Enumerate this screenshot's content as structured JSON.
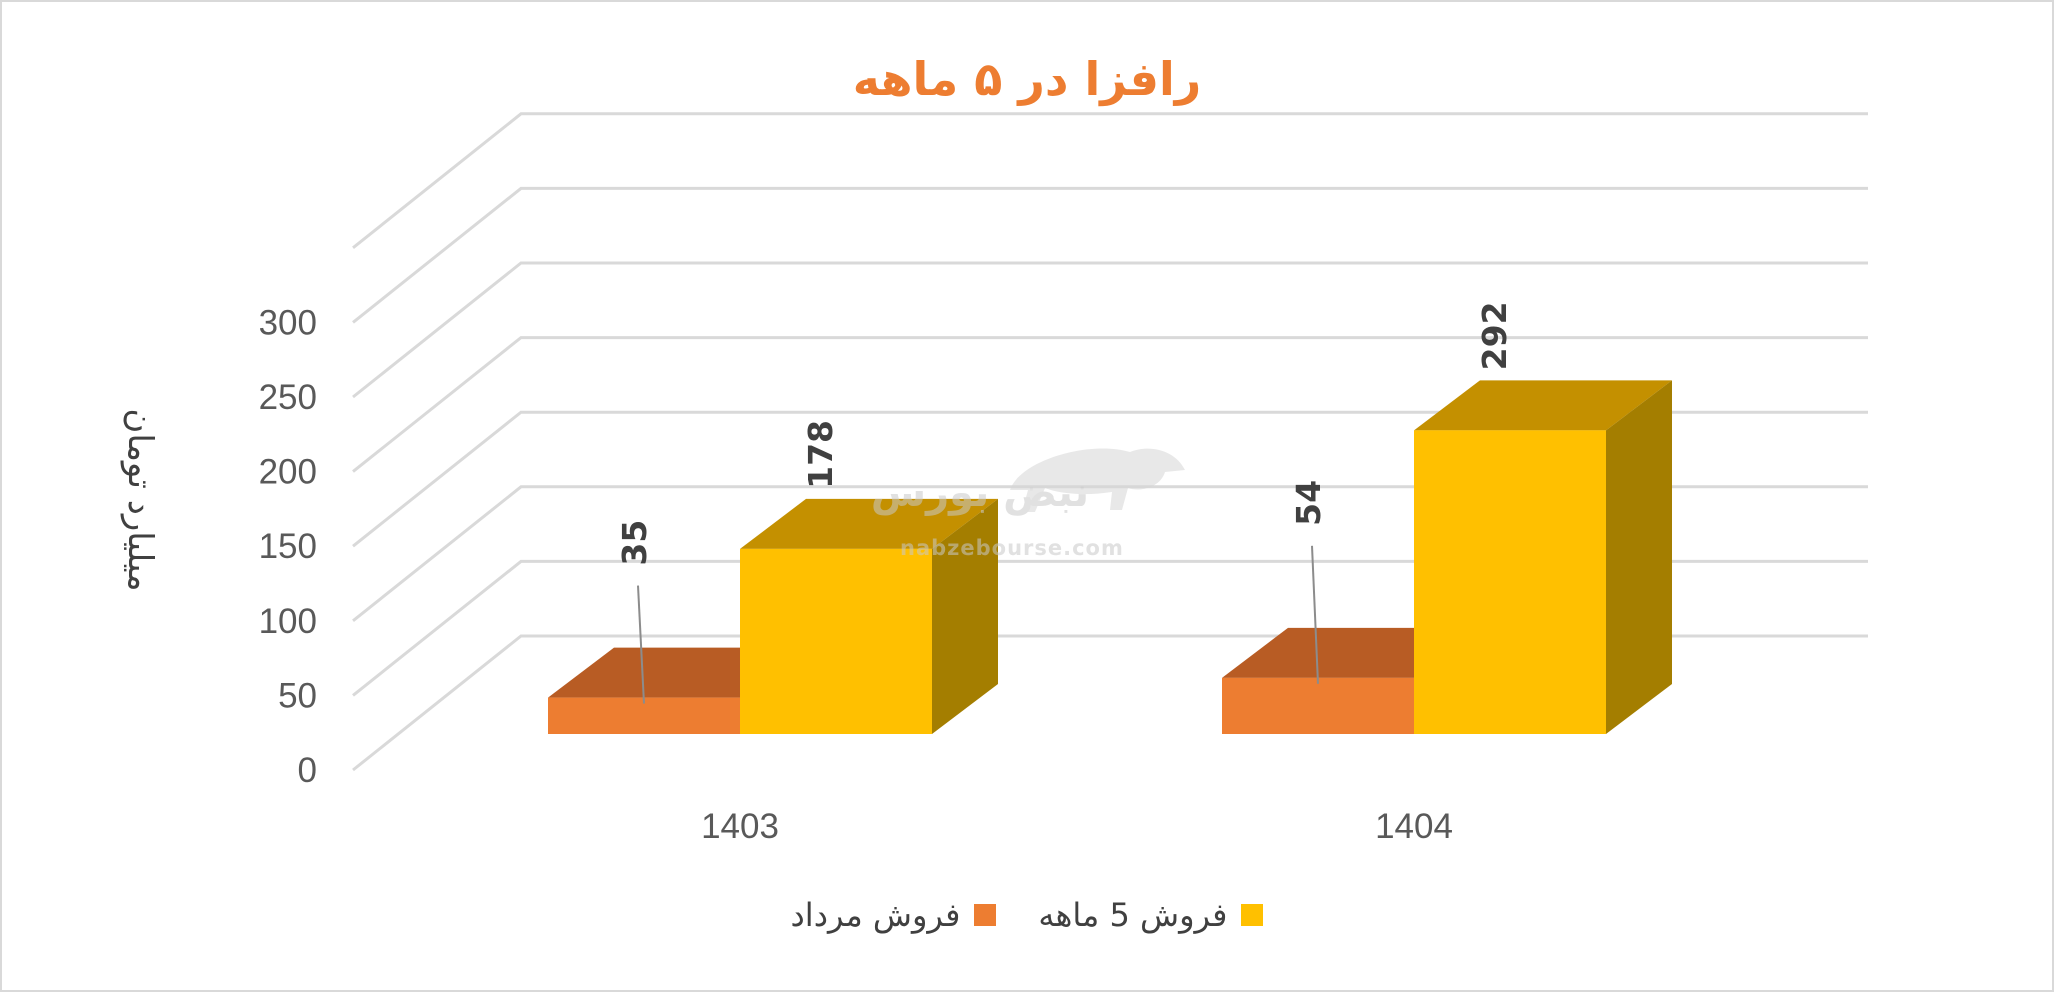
{
  "chart_data": {
    "type": "bar",
    "title": "رافزا در ۵ ماهه",
    "ylabel": "میلیارد تومان",
    "categories": [
      "1403",
      "1404"
    ],
    "yticks": [
      "0",
      "50",
      "100",
      "150",
      "200",
      "250",
      "300"
    ],
    "ylim": [
      0,
      300
    ],
    "series": [
      {
        "name": "فروش مرداد",
        "values": [
          35,
          54
        ],
        "labels": [
          "35",
          "54"
        ],
        "color": "#ed7d31",
        "top_color": "#b85c24"
      },
      {
        "name": "فروش 5  ماهه",
        "values": [
          178,
          292
        ],
        "labels": [
          "178",
          "292"
        ],
        "color": "#ffc000",
        "top_color": "#c49000",
        "side_color": "#a47e00"
      }
    ],
    "legend_position": "bottom",
    "grid": true
  },
  "watermark": {
    "brand": "نبض بورس",
    "site": "nabzebourse.com"
  }
}
